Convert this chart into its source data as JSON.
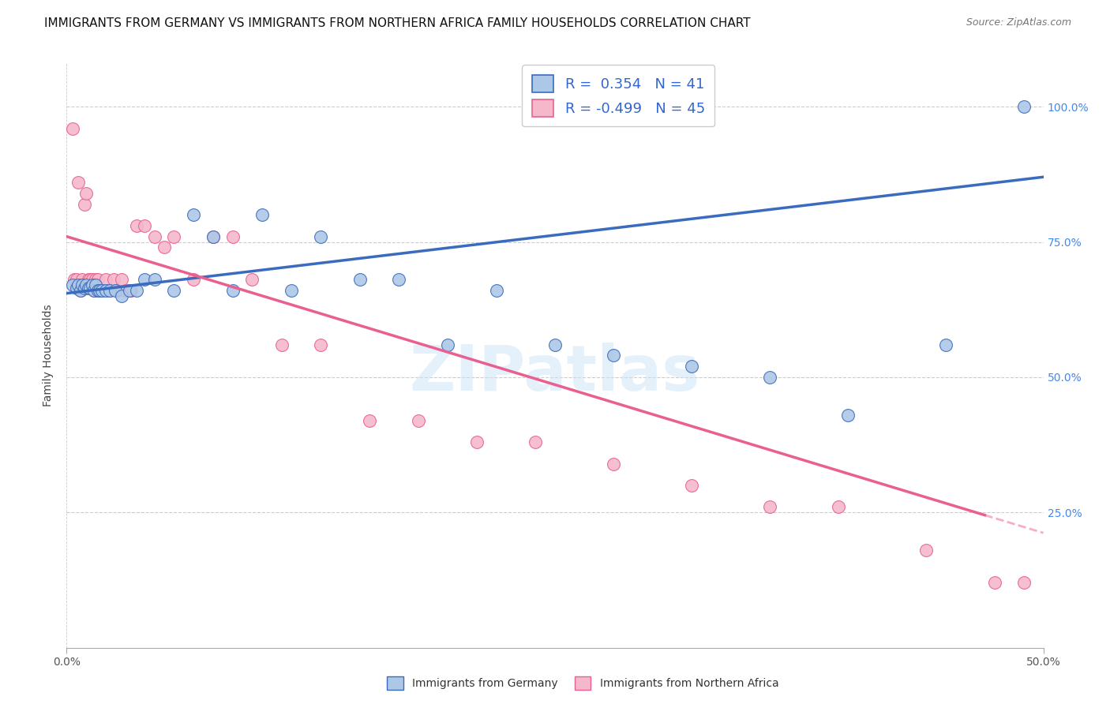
{
  "title": "IMMIGRANTS FROM GERMANY VS IMMIGRANTS FROM NORTHERN AFRICA FAMILY HOUSEHOLDS CORRELATION CHART",
  "source": "Source: ZipAtlas.com",
  "ylabel": "Family Households",
  "xlim": [
    0.0,
    0.5
  ],
  "ylim": [
    0.0,
    1.08
  ],
  "watermark": "ZIPatlas",
  "legend_r1": "R =  0.354",
  "legend_n1": "N = 41",
  "legend_r2": "R = -0.499",
  "legend_n2": "N = 45",
  "color_germany": "#adc8e6",
  "color_nafrica": "#f5b8cb",
  "color_germany_line": "#3a6bbf",
  "color_nafrica_line": "#e96090",
  "title_fontsize": 11,
  "axis_label_fontsize": 10,
  "tick_fontsize": 10,
  "legend_fontsize": 13,
  "germany_x": [
    0.003,
    0.005,
    0.006,
    0.007,
    0.008,
    0.009,
    0.01,
    0.011,
    0.012,
    0.013,
    0.014,
    0.015,
    0.016,
    0.017,
    0.018,
    0.02,
    0.022,
    0.025,
    0.028,
    0.032,
    0.036,
    0.04,
    0.045,
    0.055,
    0.065,
    0.075,
    0.085,
    0.1,
    0.115,
    0.13,
    0.15,
    0.17,
    0.195,
    0.22,
    0.25,
    0.28,
    0.32,
    0.36,
    0.4,
    0.45,
    0.49
  ],
  "germany_y": [
    0.67,
    0.665,
    0.67,
    0.66,
    0.67,
    0.665,
    0.67,
    0.665,
    0.665,
    0.67,
    0.66,
    0.67,
    0.66,
    0.66,
    0.66,
    0.66,
    0.66,
    0.66,
    0.65,
    0.66,
    0.66,
    0.68,
    0.68,
    0.66,
    0.8,
    0.76,
    0.66,
    0.8,
    0.66,
    0.76,
    0.68,
    0.68,
    0.56,
    0.66,
    0.56,
    0.54,
    0.52,
    0.5,
    0.43,
    0.56,
    1.0
  ],
  "nafrica_x": [
    0.003,
    0.004,
    0.005,
    0.006,
    0.007,
    0.008,
    0.009,
    0.01,
    0.011,
    0.012,
    0.013,
    0.014,
    0.015,
    0.016,
    0.017,
    0.018,
    0.02,
    0.022,
    0.024,
    0.026,
    0.028,
    0.03,
    0.033,
    0.036,
    0.04,
    0.045,
    0.05,
    0.055,
    0.065,
    0.075,
    0.085,
    0.095,
    0.11,
    0.13,
    0.155,
    0.18,
    0.21,
    0.24,
    0.28,
    0.32,
    0.36,
    0.395,
    0.44,
    0.475,
    0.49
  ],
  "nafrica_y": [
    0.96,
    0.68,
    0.68,
    0.86,
    0.66,
    0.68,
    0.82,
    0.84,
    0.68,
    0.68,
    0.68,
    0.66,
    0.68,
    0.68,
    0.66,
    0.66,
    0.68,
    0.66,
    0.68,
    0.66,
    0.68,
    0.66,
    0.66,
    0.78,
    0.78,
    0.76,
    0.74,
    0.76,
    0.68,
    0.76,
    0.76,
    0.68,
    0.56,
    0.56,
    0.42,
    0.42,
    0.38,
    0.38,
    0.34,
    0.3,
    0.26,
    0.26,
    0.18,
    0.12,
    0.12
  ],
  "blue_line_x0": 0.0,
  "blue_line_y0": 0.655,
  "blue_line_x1": 0.5,
  "blue_line_y1": 0.87,
  "pink_line_x0": 0.0,
  "pink_line_y0": 0.76,
  "pink_line_x1": 0.47,
  "pink_line_y1": 0.245
}
